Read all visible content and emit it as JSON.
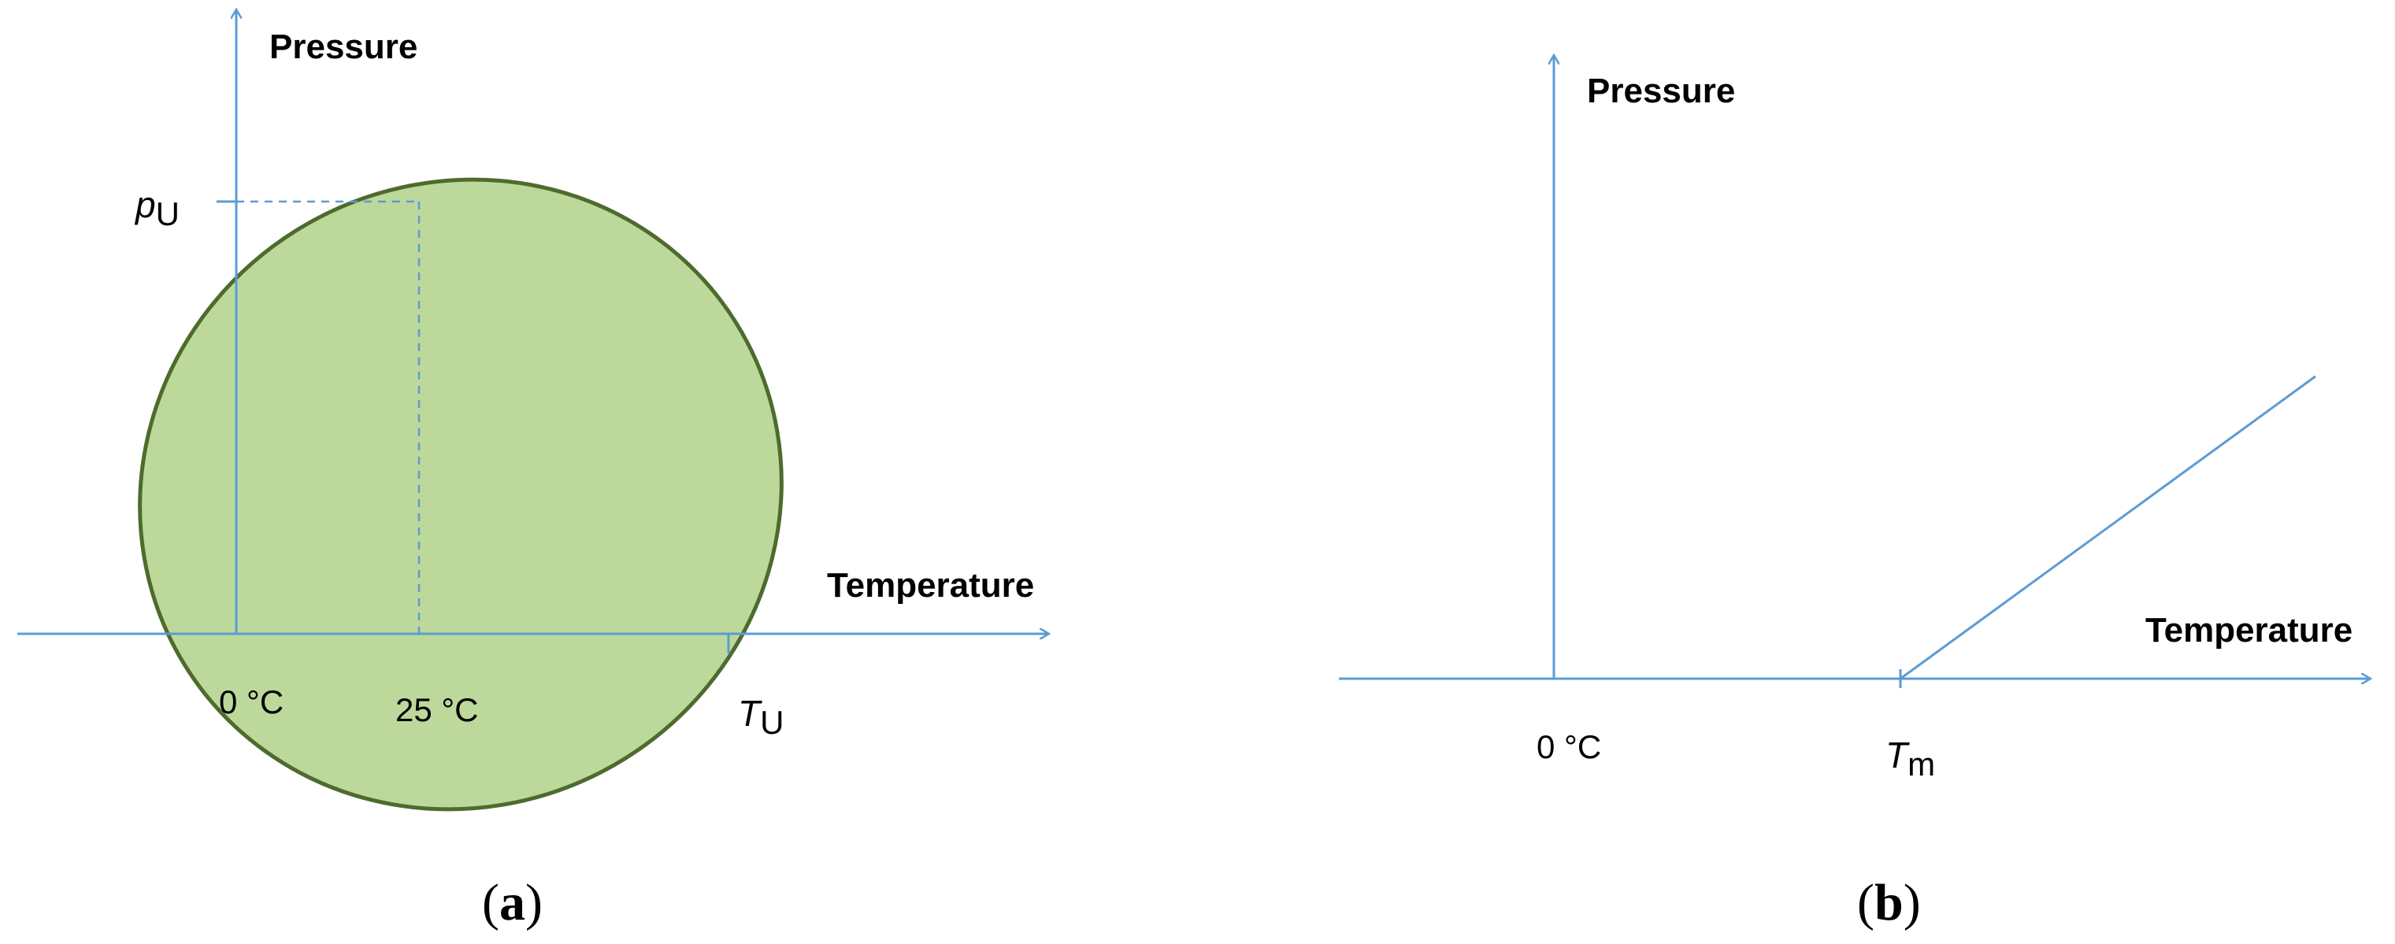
{
  "colors": {
    "axis": "#5B9BD5",
    "region_fill": "#BDD89B",
    "region_stroke": "#4E6B2E",
    "line": "#5B9BD5"
  },
  "panel_a": {
    "y_axis_label": "Pressure",
    "x_axis_label": "Temperature",
    "tick_zero": "0 °C",
    "tick_25": "25 °C",
    "pressure_symbol": "p",
    "pressure_subscript": "U",
    "temperature_symbol": "T",
    "temperature_subscript": "U",
    "caption_open": "(",
    "caption_letter": "a",
    "caption_close": ")"
  },
  "panel_b": {
    "y_axis_label": "Pressure",
    "x_axis_label": "Temperature",
    "tick_zero": "0 °C",
    "temperature_symbol": "T",
    "temperature_subscript": "m",
    "caption_open": "(",
    "caption_letter": "b",
    "caption_close": ")"
  }
}
